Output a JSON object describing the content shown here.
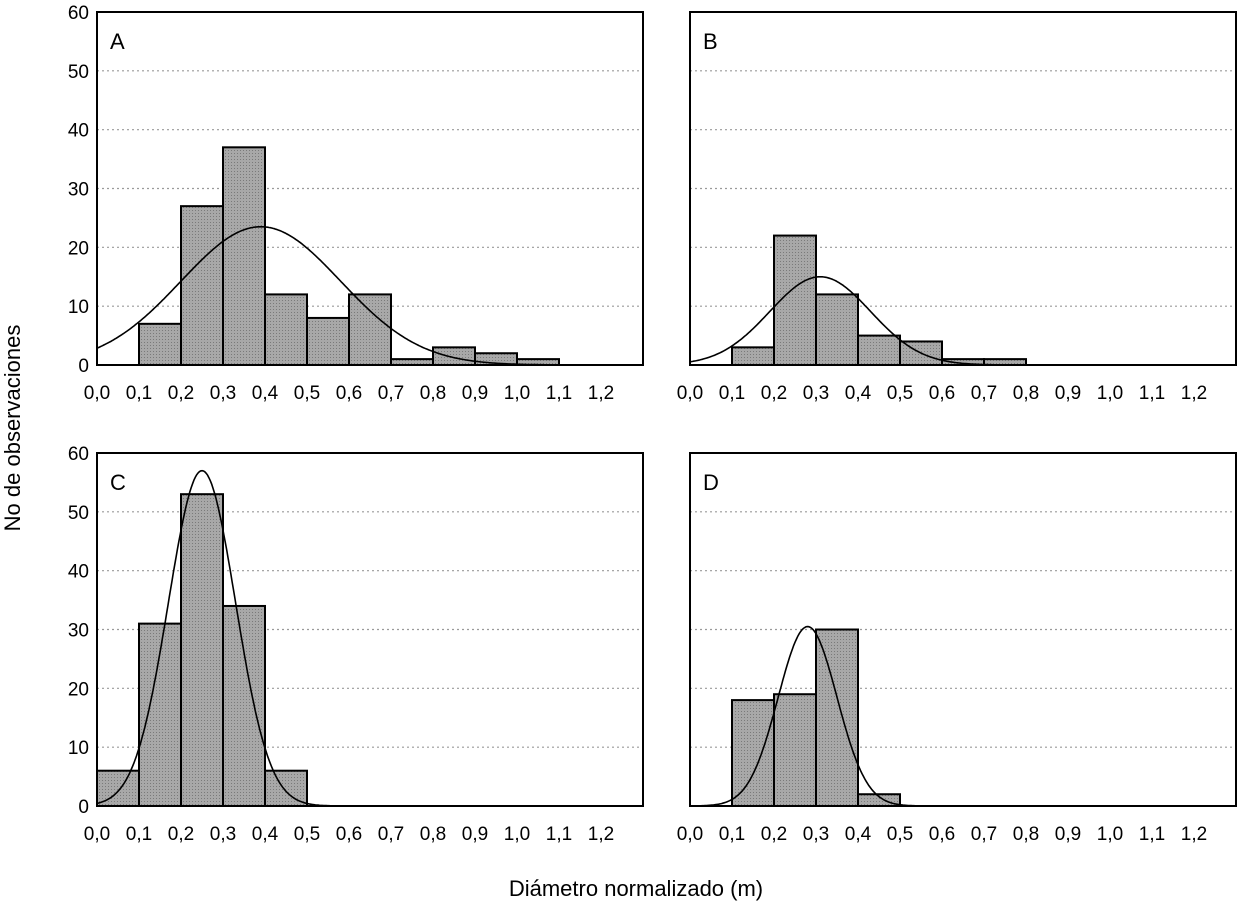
{
  "figure": {
    "ylabel": "No de observaciones",
    "xlabel": "Diámetro normalizado (m)"
  },
  "chart_data": [
    {
      "type": "bar",
      "panel": "A",
      "bin_edges": [
        0.0,
        0.1,
        0.2,
        0.3,
        0.4,
        0.5,
        0.6,
        0.7,
        0.8,
        0.9,
        1.0,
        1.1,
        1.2
      ],
      "values": [
        0,
        7,
        27,
        37,
        12,
        8,
        12,
        1,
        3,
        2,
        1,
        0
      ],
      "fit_curve": {
        "mean": 0.39,
        "sd": 0.19,
        "peak": 23.5
      },
      "xlim": [
        0.0,
        1.3
      ],
      "ylim": [
        0,
        60
      ],
      "x_ticks": [
        "0,0",
        "0,1",
        "0,2",
        "0,3",
        "0,4",
        "0,5",
        "0,6",
        "0,7",
        "0,8",
        "0,9",
        "1,0",
        "1,1",
        "1,2"
      ],
      "y_ticks": [
        0,
        10,
        20,
        30,
        40,
        50,
        60
      ],
      "grid": "horizontal dotted"
    },
    {
      "type": "bar",
      "panel": "B",
      "bin_edges": [
        0.0,
        0.1,
        0.2,
        0.3,
        0.4,
        0.5,
        0.6,
        0.7,
        0.8,
        0.9,
        1.0,
        1.1,
        1.2
      ],
      "values": [
        0,
        3,
        22,
        12,
        5,
        4,
        1,
        1,
        0,
        0,
        0,
        0
      ],
      "fit_curve": {
        "mean": 0.31,
        "sd": 0.12,
        "peak": 15
      },
      "xlim": [
        0.0,
        1.3
      ],
      "ylim": [
        0,
        60
      ],
      "x_ticks": [
        "0,0",
        "0,1",
        "0,2",
        "0,3",
        "0,4",
        "0,5",
        "0,6",
        "0,7",
        "0,8",
        "0,9",
        "1,0",
        "1,1",
        "1,2"
      ],
      "y_ticks": [
        0,
        10,
        20,
        30,
        40,
        50,
        60
      ],
      "grid": "horizontal dotted"
    },
    {
      "type": "bar",
      "panel": "C",
      "bin_edges": [
        0.0,
        0.1,
        0.2,
        0.3,
        0.4,
        0.5,
        0.6,
        0.7,
        0.8,
        0.9,
        1.0,
        1.1,
        1.2
      ],
      "values": [
        6,
        31,
        53,
        34,
        6,
        0,
        0,
        0,
        0,
        0,
        0,
        0
      ],
      "fit_curve": {
        "mean": 0.25,
        "sd": 0.08,
        "peak": 57
      },
      "xlim": [
        0.0,
        1.3
      ],
      "ylim": [
        0,
        60
      ],
      "x_ticks": [
        "0,0",
        "0,1",
        "0,2",
        "0,3",
        "0,4",
        "0,5",
        "0,6",
        "0,7",
        "0,8",
        "0,9",
        "1,0",
        "1,1",
        "1,2"
      ],
      "y_ticks": [
        0,
        10,
        20,
        30,
        40,
        50,
        60
      ],
      "grid": "horizontal dotted"
    },
    {
      "type": "bar",
      "panel": "D",
      "bin_edges": [
        0.0,
        0.1,
        0.2,
        0.3,
        0.4,
        0.5,
        0.6,
        0.7,
        0.8,
        0.9,
        1.0,
        1.1,
        1.2
      ],
      "values": [
        0,
        18,
        19,
        30,
        2,
        0,
        0,
        0,
        0,
        0,
        0,
        0
      ],
      "fit_curve": {
        "mean": 0.28,
        "sd": 0.07,
        "peak": 30.5
      },
      "xlim": [
        0.0,
        1.3
      ],
      "ylim": [
        0,
        60
      ],
      "x_ticks": [
        "0,0",
        "0,1",
        "0,2",
        "0,3",
        "0,4",
        "0,5",
        "0,6",
        "0,7",
        "0,8",
        "0,9",
        "1,0",
        "1,1",
        "1,2"
      ],
      "y_ticks": [
        0,
        10,
        20,
        30,
        40,
        50,
        60
      ],
      "grid": "horizontal dotted"
    }
  ],
  "colors": {
    "bar_fill": "#a8a8a8",
    "bar_stroke": "#000000",
    "curve": "#000000",
    "grid": "#9a9a9a",
    "frame": "#000000",
    "background": "#ffffff"
  }
}
